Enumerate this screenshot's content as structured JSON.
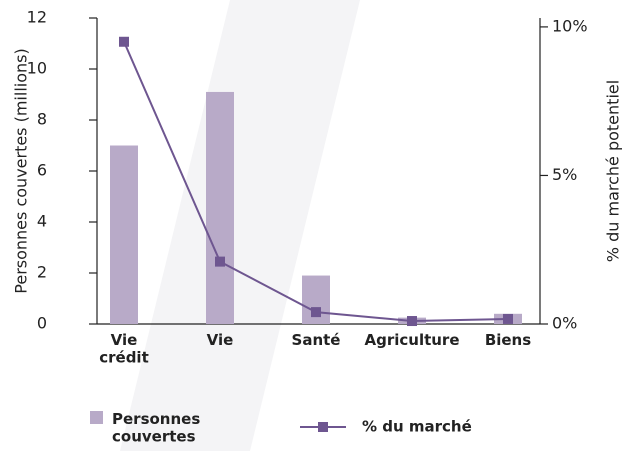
{
  "chart_data": {
    "type": "bar_line",
    "categories": [
      "Vie crédit",
      "Vie",
      "Santé",
      "Agriculture",
      "Biens"
    ],
    "series": [
      {
        "name": "Personnes couvertes",
        "color": "#b8aac8",
        "values": [
          7.0,
          9.1,
          1.9,
          0.25,
          0.4
        ]
      },
      {
        "name": "% du marché",
        "color": "#6e5690",
        "axis": "y2",
        "values": [
          9.5,
          2.1,
          0.4,
          0.1,
          0.17
        ]
      }
    ],
    "ylabel": "Personnes couvertes (millions)",
    "y2label": "% du marché potentiel",
    "ylim": [
      0,
      12
    ],
    "yticks": [
      0,
      2,
      4,
      6,
      8,
      10,
      12
    ],
    "y2lim": [
      0,
      10.3
    ],
    "y2ticks": [
      {
        "value": 0,
        "label": "0%"
      },
      {
        "value": 5,
        "label": "5%"
      },
      {
        "value": 10,
        "label": "10%"
      }
    ]
  }
}
